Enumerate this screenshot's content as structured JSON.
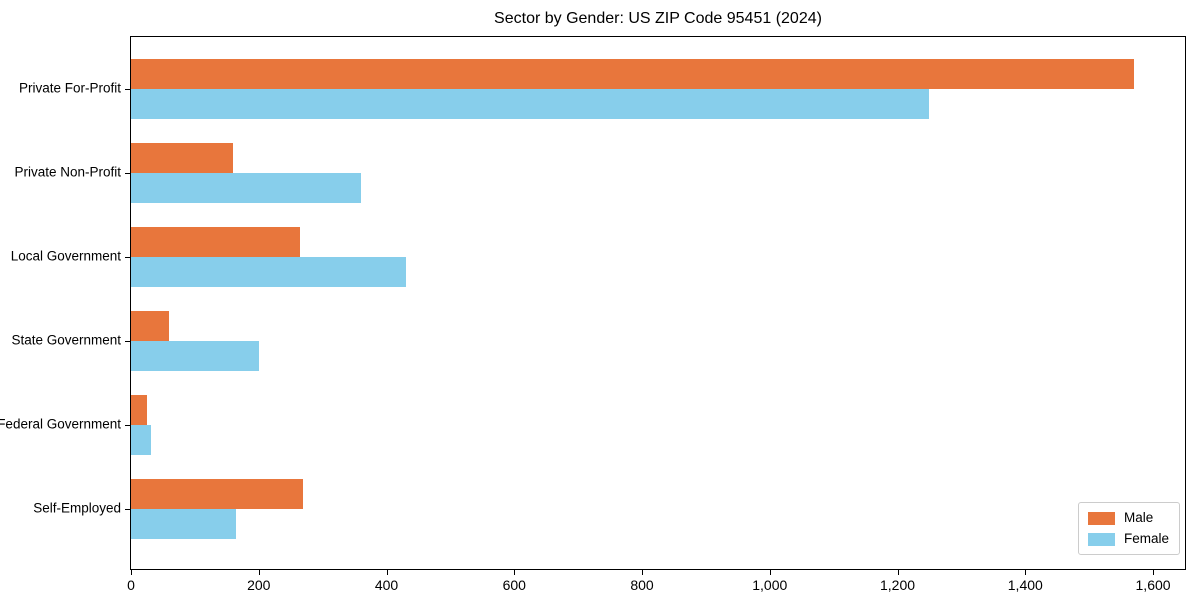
{
  "chart_data": {
    "type": "bar",
    "orientation": "horizontal",
    "title": "Sector by Gender: US ZIP Code 95451 (2024)",
    "categories": [
      "Private For-Profit",
      "Private Non-Profit",
      "Local Government",
      "State Government",
      "Federal Government",
      "Self-Employed"
    ],
    "series": [
      {
        "name": "Male",
        "color": "#e8763c",
        "values": [
          1570,
          160,
          265,
          60,
          25,
          270
        ]
      },
      {
        "name": "Female",
        "color": "#87ceeb",
        "values": [
          1250,
          360,
          430,
          200,
          32,
          165
        ]
      }
    ],
    "xlim": [
      0,
      1650
    ],
    "xticks": [
      0,
      200,
      400,
      600,
      800,
      1000,
      1200,
      1400,
      1600
    ],
    "xtick_labels": [
      "0",
      "200",
      "400",
      "600",
      "800",
      "1,000",
      "1,200",
      "1,400",
      "1,600"
    ],
    "xlabel": "",
    "ylabel": "",
    "grid": false,
    "legend_position": "lower right",
    "spine_color": "#000000",
    "background_color": "#ffffff"
  }
}
